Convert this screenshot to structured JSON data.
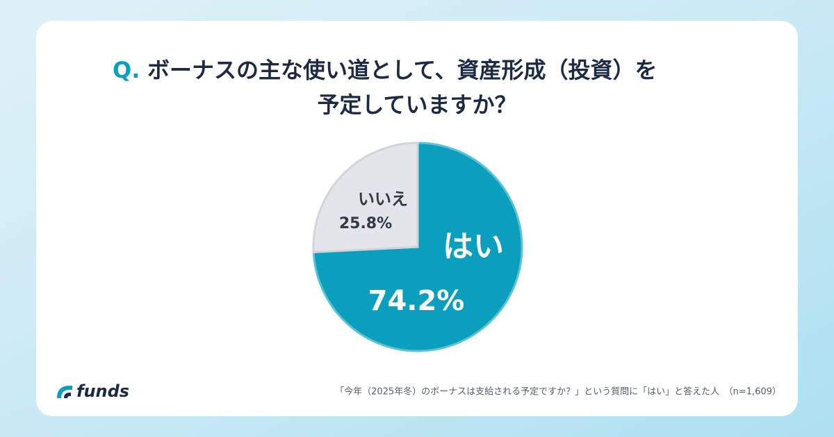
{
  "chart_data": {
    "type": "pie",
    "title_prefix": "Q.",
    "title_lines": [
      "ボーナスの主な使い道として、資産形成（投資）を",
      "予定していますか？"
    ],
    "categories": [
      "はい",
      "いいえ"
    ],
    "values": [
      74.2,
      25.8
    ],
    "value_labels": [
      "74.2%",
      "25.8%"
    ],
    "colors": [
      "#0a9fbd",
      "#e3e5ea"
    ],
    "footnote": "「今年（2025年冬）のボーナスは支給される予定ですか？」という質問に「はい」と答えた人　（n=1,609）",
    "brand": "funds"
  }
}
